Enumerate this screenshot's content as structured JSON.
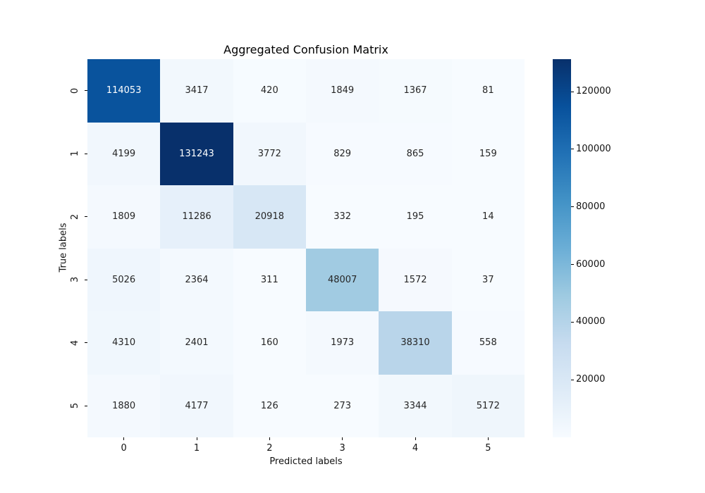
{
  "chart_data": {
    "type": "heatmap",
    "title": "Aggregated Confusion Matrix",
    "xlabel": "Predicted labels",
    "ylabel": "True labels",
    "x_tick_labels": [
      "0",
      "1",
      "2",
      "3",
      "4",
      "5"
    ],
    "y_tick_labels": [
      "0",
      "1",
      "2",
      "3",
      "4",
      "5"
    ],
    "matrix": [
      [
        114053,
        3417,
        420,
        1849,
        1367,
        81
      ],
      [
        4199,
        131243,
        3772,
        829,
        865,
        159
      ],
      [
        1809,
        11286,
        20918,
        332,
        195,
        14
      ],
      [
        5026,
        2364,
        311,
        48007,
        1572,
        37
      ],
      [
        4310,
        2401,
        160,
        1973,
        38310,
        558
      ],
      [
        1880,
        4177,
        126,
        273,
        3344,
        5172
      ]
    ],
    "vmin": 14,
    "vmax": 131243,
    "colormap": "Blues",
    "colormap_stops": [
      "#f7fbff",
      "#deebf7",
      "#c6dbef",
      "#9ecae1",
      "#6baed6",
      "#4292c6",
      "#2171b5",
      "#08519c",
      "#08306b"
    ],
    "colorbar_ticks": [
      20000,
      40000,
      60000,
      80000,
      100000,
      120000
    ],
    "annotation_color_dark": "#262626",
    "annotation_color_light": "#ffffff",
    "legend_position": "right-colorbar",
    "grid": false
  }
}
